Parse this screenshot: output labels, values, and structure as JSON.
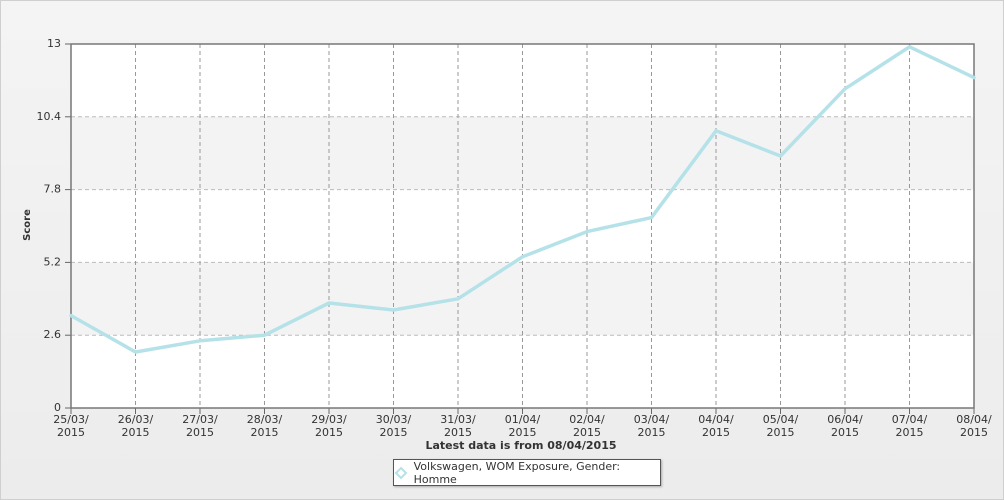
{
  "chart_data": {
    "type": "line",
    "x_label": "Latest data is from 08/04/2015",
    "y_label": "Score",
    "categories": [
      "25/03/\n2015",
      "26/03/\n2015",
      "27/03/\n2015",
      "28/03/\n2015",
      "29/03/\n2015",
      "30/03/\n2015",
      "31/03/\n2015",
      "01/04/\n2015",
      "02/04/\n2015",
      "03/04/\n2015",
      "04/04/\n2015",
      "05/04/\n2015",
      "06/04/\n2015",
      "07/04/\n2015",
      "08/04/\n2015"
    ],
    "series": [
      {
        "name": "Volkswagen, WOM Exposure, Gender: Homme",
        "color": "#b4e2e8",
        "values": [
          3.3,
          2.0,
          2.4,
          2.6,
          3.75,
          3.5,
          3.9,
          5.4,
          6.3,
          6.8,
          9.9,
          9.0,
          11.4,
          12.9,
          11.8
        ]
      }
    ],
    "ylim": [
      0,
      13
    ],
    "yticks": [
      0,
      2.6,
      5.2,
      7.8,
      10.4,
      13
    ],
    "grid": true
  }
}
